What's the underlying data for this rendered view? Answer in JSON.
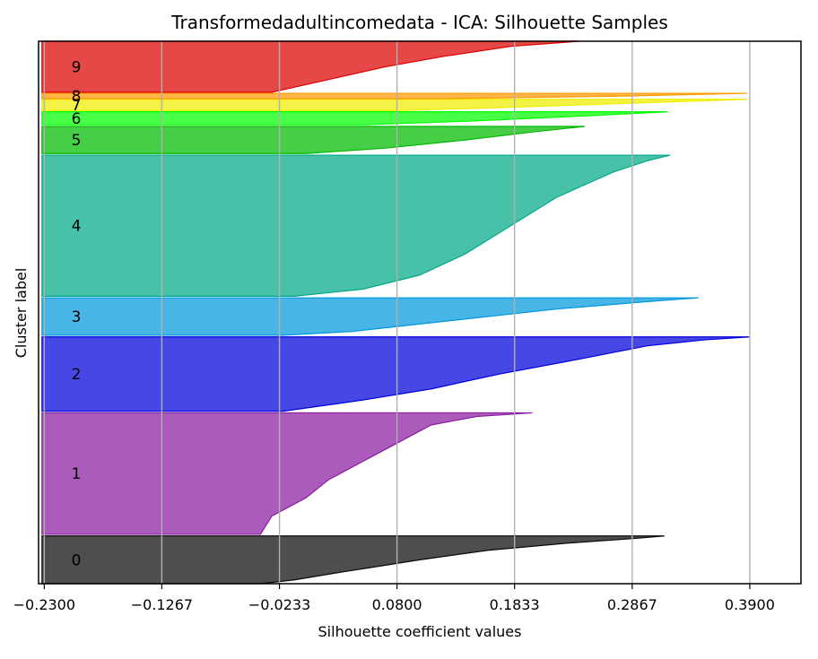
{
  "chart_data": {
    "type": "area",
    "title": "Transformedadultincomedata - ICA: Silhouette Samples",
    "xlabel": "Silhouette coefficient values",
    "ylabel": "Cluster label",
    "xlim": [
      -0.235,
      0.435
    ],
    "xticks": [
      "−0.2300",
      "−0.1267",
      "−0.0233",
      "0.0800",
      "0.1833",
      "0.2867",
      "0.3900"
    ],
    "xtick_values": [
      -0.23,
      -0.1267,
      -0.0233,
      0.08,
      0.1833,
      0.2867,
      0.39
    ],
    "grid_x": true,
    "clusters": [
      {
        "label": "0",
        "color": "#0a0a0a",
        "start": 0.0,
        "end": 0.088,
        "profile": [
          [
            0.0,
            0.315
          ],
          [
            0.05,
            0.29
          ],
          [
            0.15,
            0.23
          ],
          [
            0.3,
            0.16
          ],
          [
            0.5,
            0.1
          ],
          [
            0.65,
            0.06
          ],
          [
            0.8,
            0.02
          ],
          [
            0.92,
            -0.01
          ],
          [
            1.0,
            -0.04
          ]
        ]
      },
      {
        "label": "1",
        "color": "#8a1ca0",
        "start": 0.091,
        "end": 0.315,
        "profile": [
          [
            0.0,
            0.199
          ],
          [
            0.03,
            0.15
          ],
          [
            0.1,
            0.11
          ],
          [
            0.25,
            0.08
          ],
          [
            0.4,
            0.05
          ],
          [
            0.55,
            0.02
          ],
          [
            0.7,
            0.0
          ],
          [
            0.85,
            -0.03
          ],
          [
            1.0,
            -0.04
          ]
        ]
      },
      {
        "label": "2",
        "color": "#0000dd",
        "start": 0.318,
        "end": 0.455,
        "profile": [
          [
            0.0,
            0.39
          ],
          [
            0.04,
            0.35
          ],
          [
            0.12,
            0.3
          ],
          [
            0.3,
            0.24
          ],
          [
            0.5,
            0.17
          ],
          [
            0.7,
            0.11
          ],
          [
            0.85,
            0.05
          ],
          [
            1.0,
            -0.02
          ]
        ]
      },
      {
        "label": "3",
        "color": "#0098dd",
        "start": 0.458,
        "end": 0.527,
        "profile": [
          [
            0.0,
            0.345
          ],
          [
            0.1,
            0.3
          ],
          [
            0.3,
            0.22
          ],
          [
            0.5,
            0.16
          ],
          [
            0.7,
            0.1
          ],
          [
            0.9,
            0.04
          ],
          [
            1.0,
            -0.02
          ]
        ]
      },
      {
        "label": "4",
        "color": "#00aa88",
        "start": 0.53,
        "end": 0.79,
        "profile": [
          [
            0.0,
            0.32
          ],
          [
            0.04,
            0.3
          ],
          [
            0.12,
            0.27
          ],
          [
            0.3,
            0.22
          ],
          [
            0.5,
            0.18
          ],
          [
            0.7,
            0.14
          ],
          [
            0.85,
            0.1
          ],
          [
            0.95,
            0.05
          ],
          [
            1.0,
            -0.01
          ]
        ]
      },
      {
        "label": "5",
        "color": "#00bb00",
        "start": 0.793,
        "end": 0.843,
        "profile": [
          [
            0.0,
            0.245
          ],
          [
            0.2,
            0.2
          ],
          [
            0.5,
            0.14
          ],
          [
            0.8,
            0.07
          ],
          [
            1.0,
            0.0
          ]
        ]
      },
      {
        "label": "6",
        "color": "#00ff00",
        "start": 0.846,
        "end": 0.87,
        "profile": [
          [
            0.0,
            0.318
          ],
          [
            0.3,
            0.25
          ],
          [
            0.7,
            0.15
          ],
          [
            1.0,
            0.05
          ]
        ]
      },
      {
        "label": "7",
        "color": "#eeee00",
        "start": 0.872,
        "end": 0.893,
        "profile": [
          [
            0.0,
            0.388
          ],
          [
            0.3,
            0.3
          ],
          [
            0.7,
            0.18
          ],
          [
            1.0,
            0.08
          ]
        ]
      },
      {
        "label": "8",
        "color": "#ff9900",
        "start": 0.894,
        "end": 0.904,
        "profile": [
          [
            0.0,
            0.388
          ],
          [
            0.5,
            0.28
          ],
          [
            1.0,
            0.12
          ]
        ]
      },
      {
        "label": "9",
        "color": "#dd0000",
        "start": 0.906,
        "end": 1.0,
        "profile": [
          [
            0.0,
            0.24
          ],
          [
            0.1,
            0.18
          ],
          [
            0.3,
            0.12
          ],
          [
            0.5,
            0.07
          ],
          [
            0.7,
            0.03
          ],
          [
            0.9,
            -0.01
          ],
          [
            1.0,
            -0.03
          ]
        ]
      }
    ]
  }
}
